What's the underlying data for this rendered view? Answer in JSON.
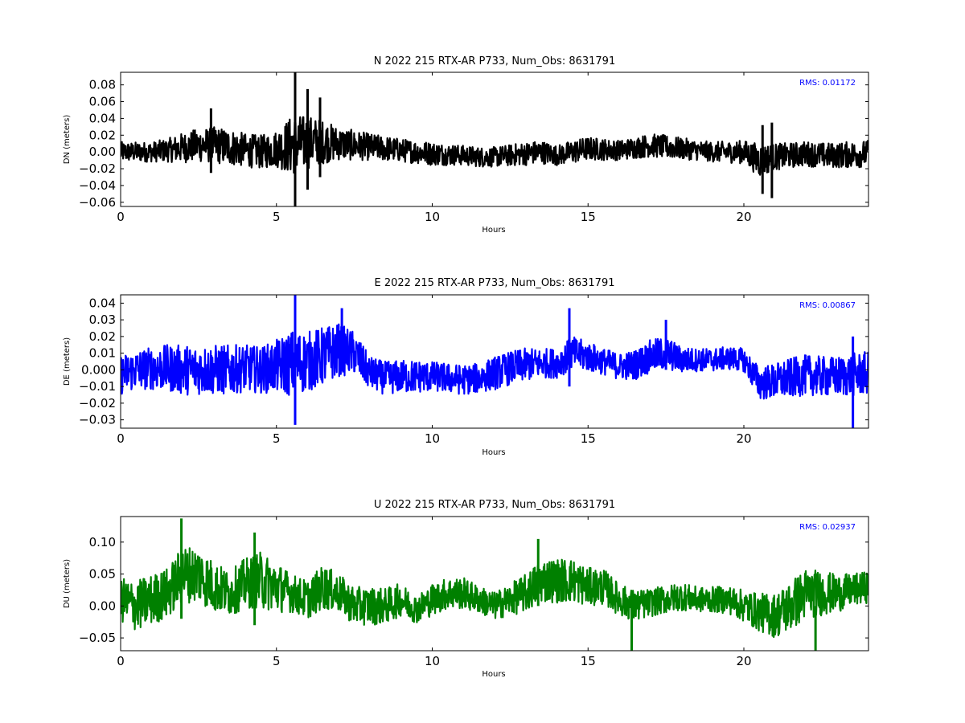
{
  "chart_data": [
    {
      "type": "line",
      "title": "N 2022 215 RTX-AR  P733, Num_Obs: 8631791",
      "xlabel": "Hours",
      "ylabel": "DN (meters)",
      "xlim": [
        0,
        24
      ],
      "ylim": [
        -0.065,
        0.095
      ],
      "xticks": [
        0,
        5,
        10,
        15,
        20
      ],
      "yticks": [
        -0.06,
        -0.04,
        -0.02,
        0.0,
        0.02,
        0.04,
        0.06,
        0.08
      ],
      "ytick_labels": [
        "−0.06",
        "−0.04",
        "−0.02",
        "0.00",
        "0.02",
        "0.04",
        "0.06",
        "0.08"
      ],
      "annotation": "RMS:  0.01172",
      "color": "#000000",
      "annotation_color": "#0000ff",
      "grid": false,
      "series": [
        {
          "x": [
            0,
            0.5,
            1,
            1.5,
            2,
            2.5,
            3,
            3.5,
            4,
            4.5,
            5,
            5.5,
            6,
            6.5,
            7,
            7.5,
            8,
            8.5,
            9,
            9.5,
            10,
            10.5,
            11,
            11.5,
            12,
            12.5,
            13,
            13.5,
            14,
            14.5,
            15,
            15.5,
            16,
            16.5,
            17,
            17.5,
            18,
            18.5,
            19,
            19.5,
            20,
            20.5,
            21,
            21.5,
            22,
            22.5,
            23,
            23.5,
            24
          ],
          "center": [
            0.0,
            0.0,
            0.0,
            0.002,
            0.005,
            0.008,
            0.008,
            0.006,
            0.002,
            0.0,
            0.004,
            0.008,
            0.012,
            0.012,
            0.01,
            0.008,
            0.006,
            0.004,
            0.002,
            0.0,
            -0.002,
            -0.003,
            -0.004,
            -0.006,
            -0.006,
            -0.004,
            -0.002,
            0.0,
            -0.004,
            0.0,
            0.004,
            0.003,
            0.002,
            0.005,
            0.008,
            0.006,
            0.004,
            0.002,
            0.0,
            0.0,
            0.0,
            -0.01,
            -0.006,
            -0.004,
            -0.002,
            -0.004,
            -0.004,
            -0.003,
            -0.002
          ],
          "half_range": [
            0.012,
            0.012,
            0.012,
            0.014,
            0.018,
            0.02,
            0.022,
            0.022,
            0.02,
            0.02,
            0.022,
            0.036,
            0.032,
            0.026,
            0.02,
            0.018,
            0.016,
            0.015,
            0.014,
            0.014,
            0.014,
            0.013,
            0.012,
            0.012,
            0.012,
            0.013,
            0.014,
            0.014,
            0.012,
            0.014,
            0.014,
            0.013,
            0.012,
            0.013,
            0.014,
            0.014,
            0.013,
            0.012,
            0.012,
            0.013,
            0.014,
            0.02,
            0.016,
            0.015,
            0.015,
            0.015,
            0.015,
            0.016,
            0.016
          ],
          "spikes": [
            [
              5.6,
              -0.065,
              0.095
            ],
            [
              6.0,
              -0.045,
              0.075
            ],
            [
              6.4,
              -0.03,
              0.065
            ],
            [
              2.9,
              -0.025,
              0.052
            ],
            [
              20.9,
              -0.055,
              0.035
            ],
            [
              20.6,
              -0.05,
              0.032
            ]
          ]
        }
      ]
    },
    {
      "type": "line",
      "title": "E 2022 215 RTX-AR  P733, Num_Obs: 8631791",
      "xlabel": "Hours",
      "ylabel": "DE (meters)",
      "xlim": [
        0,
        24
      ],
      "ylim": [
        -0.035,
        0.045
      ],
      "xticks": [
        0,
        5,
        10,
        15,
        20
      ],
      "yticks": [
        -0.03,
        -0.02,
        -0.01,
        0.0,
        0.01,
        0.02,
        0.03,
        0.04
      ],
      "ytick_labels": [
        "−0.03",
        "−0.02",
        "−0.01",
        "0.000",
        "0.01",
        "0.02",
        "0.03",
        "0.04"
      ],
      "annotation": "RMS:  0.00867",
      "color": "#0000ff",
      "annotation_color": "#0000ff",
      "grid": false,
      "series": [
        {
          "x": [
            0,
            0.5,
            1,
            1.5,
            2,
            2.5,
            3,
            3.5,
            4,
            4.5,
            5,
            5.5,
            6,
            6.5,
            7,
            7.5,
            8,
            8.5,
            9,
            9.5,
            10,
            10.5,
            11,
            11.5,
            12,
            12.5,
            13,
            13.5,
            14,
            14.5,
            15,
            15.5,
            16,
            16.5,
            17,
            17.5,
            18,
            18.5,
            19,
            19.5,
            20,
            20.5,
            21,
            21.5,
            22,
            22.5,
            23,
            23.5,
            24
          ],
          "center": [
            -0.003,
            0.0,
            0.001,
            0.001,
            0.0,
            0.0,
            0.0,
            0.0,
            0.001,
            0.0,
            0.002,
            0.004,
            0.005,
            0.008,
            0.012,
            0.01,
            -0.002,
            -0.005,
            -0.004,
            -0.004,
            -0.004,
            -0.005,
            -0.006,
            -0.005,
            -0.002,
            0.001,
            0.003,
            0.004,
            0.004,
            0.01,
            0.008,
            0.005,
            0.002,
            0.003,
            0.008,
            0.01,
            0.006,
            0.006,
            0.006,
            0.007,
            0.006,
            -0.008,
            -0.007,
            -0.005,
            -0.003,
            -0.004,
            -0.004,
            -0.003,
            -0.002
          ],
          "half_range": [
            0.012,
            0.012,
            0.013,
            0.014,
            0.015,
            0.015,
            0.015,
            0.015,
            0.014,
            0.014,
            0.016,
            0.02,
            0.018,
            0.018,
            0.016,
            0.013,
            0.01,
            0.01,
            0.01,
            0.01,
            0.009,
            0.009,
            0.009,
            0.009,
            0.01,
            0.01,
            0.01,
            0.009,
            0.009,
            0.01,
            0.009,
            0.008,
            0.008,
            0.009,
            0.01,
            0.01,
            0.008,
            0.007,
            0.007,
            0.007,
            0.007,
            0.01,
            0.011,
            0.012,
            0.012,
            0.012,
            0.012,
            0.013,
            0.013
          ],
          "spikes": [
            [
              5.6,
              -0.033,
              0.045
            ],
            [
              14.4,
              -0.01,
              0.037
            ],
            [
              23.5,
              -0.035,
              0.02
            ],
            [
              7.1,
              0.0,
              0.037
            ],
            [
              17.5,
              0.0,
              0.03
            ]
          ]
        }
      ]
    },
    {
      "type": "line",
      "title": "U 2022 215 RTX-AR  P733, Num_Obs: 8631791",
      "xlabel": "Hours",
      "ylabel": "DU (meters)",
      "xlim": [
        0,
        24
      ],
      "ylim": [
        -0.07,
        0.14
      ],
      "xticks": [
        0,
        5,
        10,
        15,
        20
      ],
      "yticks": [
        -0.05,
        0.0,
        0.05,
        0.1
      ],
      "ytick_labels": [
        "−0.05",
        "0.00",
        "0.05",
        "0.10"
      ],
      "annotation": "RMS:  0.02937",
      "color": "#008000",
      "annotation_color": "#0000ff",
      "grid": false,
      "series": [
        {
          "x": [
            0,
            0.5,
            1,
            1.5,
            2,
            2.5,
            3,
            3.5,
            4,
            4.5,
            5,
            5.5,
            6,
            6.5,
            7,
            7.5,
            8,
            8.5,
            9,
            9.5,
            10,
            10.5,
            11,
            11.5,
            12,
            12.5,
            13,
            13.5,
            14,
            14.5,
            15,
            15.5,
            16,
            16.5,
            17,
            17.5,
            18,
            18.5,
            19,
            19.5,
            20,
            20.5,
            21,
            21.5,
            22,
            22.5,
            23,
            23.5,
            24
          ],
          "center": [
            0.01,
            0.0,
            0.01,
            0.02,
            0.05,
            0.05,
            0.03,
            0.02,
            0.035,
            0.04,
            0.03,
            0.02,
            0.01,
            0.03,
            0.02,
            0.0,
            0.0,
            0.0,
            0.01,
            -0.005,
            0.01,
            0.02,
            0.02,
            0.01,
            0.0,
            0.01,
            0.02,
            0.04,
            0.04,
            0.04,
            0.03,
            0.03,
            0.01,
            0.0,
            0.005,
            0.01,
            0.015,
            0.01,
            0.01,
            0.01,
            0.0,
            -0.01,
            -0.015,
            0.0,
            0.02,
            0.02,
            0.02,
            0.025,
            0.03
          ],
          "half_range": [
            0.035,
            0.04,
            0.04,
            0.04,
            0.045,
            0.045,
            0.04,
            0.035,
            0.04,
            0.045,
            0.04,
            0.03,
            0.03,
            0.035,
            0.03,
            0.03,
            0.03,
            0.028,
            0.026,
            0.022,
            0.025,
            0.025,
            0.025,
            0.022,
            0.022,
            0.025,
            0.03,
            0.035,
            0.035,
            0.035,
            0.03,
            0.028,
            0.025,
            0.025,
            0.022,
            0.022,
            0.022,
            0.02,
            0.02,
            0.022,
            0.025,
            0.03,
            0.035,
            0.04,
            0.04,
            0.035,
            0.03,
            0.025,
            0.025
          ],
          "spikes": [
            [
              1.95,
              -0.02,
              0.137
            ],
            [
              4.3,
              -0.03,
              0.115
            ],
            [
              16.4,
              -0.07,
              0.02
            ],
            [
              13.4,
              0.0,
              0.105
            ],
            [
              22.3,
              -0.07,
              0.0
            ]
          ]
        }
      ]
    }
  ]
}
